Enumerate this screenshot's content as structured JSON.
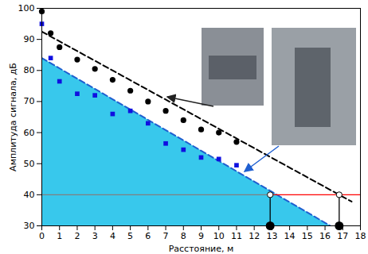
{
  "chart_data": {
    "type": "scatter",
    "x_label": "Расстояние, м",
    "y_label": "Амплитуда сигнала, дБ",
    "xlim": [
      0,
      18
    ],
    "ylim": [
      30,
      100
    ],
    "xticks": [
      0,
      1,
      2,
      3,
      4,
      5,
      6,
      7,
      8,
      9,
      10,
      11,
      12,
      13,
      14,
      15,
      16,
      17,
      18
    ],
    "yticks": [
      30,
      40,
      50,
      60,
      70,
      80,
      90,
      100
    ],
    "grid": false,
    "series": [
      {
        "type": "area",
        "color": "#38c8ec",
        "x": [
          0,
          16.3
        ],
        "values": [
          84,
          30
        ]
      },
      {
        "type": "line",
        "line_style": "dashed",
        "color": "#1f5fd0",
        "x": [
          0,
          16.3
        ],
        "values": [
          84,
          30
        ]
      },
      {
        "type": "line",
        "line_style": "dashed",
        "color": "#000000",
        "x": [
          0,
          17.5
        ],
        "values": [
          92.5,
          37.8
        ]
      },
      {
        "type": "line",
        "line_style": "solid",
        "color": "#7f7f7f",
        "x": [
          0,
          12.9
        ],
        "values": [
          40,
          40
        ]
      },
      {
        "type": "line",
        "line_style": "solid",
        "color": "#ff0000",
        "x": [
          12.9,
          18
        ],
        "values": [
          40,
          40
        ]
      },
      {
        "type": "line",
        "line_style": "solid",
        "color": "#000000",
        "x": [
          12.9,
          12.9
        ],
        "values": [
          40,
          30
        ]
      },
      {
        "type": "line",
        "line_style": "solid",
        "color": "#000000",
        "x": [
          16.8,
          16.8
        ],
        "values": [
          40,
          30
        ]
      },
      {
        "type": "scatter",
        "marker": "circle",
        "color": "#000000",
        "x": [
          0,
          0.5,
          1,
          2,
          3,
          4,
          5,
          6,
          7,
          8,
          9,
          10,
          11
        ],
        "values": [
          99,
          92,
          87.5,
          83.5,
          80.5,
          77,
          73.5,
          70,
          67,
          64,
          61,
          60,
          57
        ]
      },
      {
        "type": "scatter",
        "marker": "square",
        "color": "#1010e0",
        "x": [
          0,
          0.5,
          1,
          2,
          3,
          4,
          5,
          6,
          7,
          8,
          9,
          10,
          11
        ],
        "values": [
          95,
          84,
          76.5,
          72.5,
          72,
          66,
          67,
          63,
          56.5,
          54.5,
          52,
          51.5,
          49.5
        ]
      },
      {
        "type": "scatter",
        "marker": "circle",
        "color": "#ffffff",
        "x": [
          12.9,
          16.8
        ],
        "values": [
          40,
          40
        ]
      },
      {
        "type": "scatter",
        "marker": "disc",
        "color": "#000000",
        "x": [
          12.9,
          16.8
        ],
        "values": [
          30,
          30
        ]
      }
    ]
  }
}
